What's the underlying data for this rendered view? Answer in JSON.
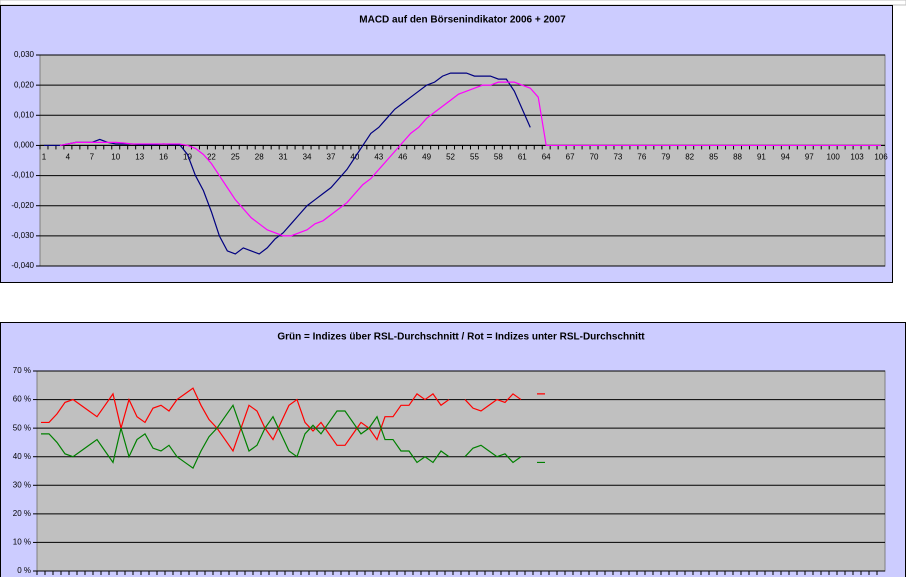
{
  "chart_data": [
    {
      "type": "line",
      "title": "MACD auf den Börsenindikator 2006 + 2007",
      "categories": [
        "1",
        null,
        null,
        "4",
        null,
        null,
        "7",
        null,
        null,
        "10",
        null,
        null,
        "13",
        null,
        null,
        "16",
        null,
        null,
        "19",
        null,
        null,
        "22",
        null,
        null,
        "25",
        null,
        null,
        "28",
        null,
        null,
        "31",
        null,
        null,
        "34",
        null,
        null,
        "37",
        null,
        null,
        "40",
        null,
        null,
        "43",
        null,
        null,
        "46",
        null,
        null,
        "49",
        null,
        null,
        "52",
        null,
        null,
        "55",
        null,
        null,
        "58",
        null,
        null,
        "61",
        null,
        null,
        "64",
        null,
        null,
        "67",
        null,
        null,
        "70",
        null,
        null,
        "73",
        null,
        null,
        "76",
        null,
        null,
        "79",
        null,
        null,
        "82",
        null,
        null,
        "85",
        null,
        null,
        "88",
        null,
        null,
        "91",
        null,
        null,
        "94",
        null,
        null,
        "97",
        null,
        null,
        "100",
        null,
        null,
        "103",
        null,
        null,
        "106"
      ],
      "series": [
        {
          "color": "#000080",
          "values": [
            0,
            0,
            0,
            0.0005,
            0.001,
            0.001,
            0.001,
            0.002,
            0.001,
            0.0005,
            0.0005,
            0.0005,
            0.0003,
            0.0003,
            0.0003,
            0.0005,
            0.0003,
            0.0003,
            -0.003,
            -0.01,
            -0.015,
            -0.022,
            -0.03,
            -0.035,
            -0.036,
            -0.034,
            -0.035,
            -0.036,
            -0.034,
            -0.031,
            -0.029,
            -0.026,
            -0.023,
            -0.02,
            -0.018,
            -0.016,
            -0.014,
            -0.011,
            -0.008,
            -0.004,
            0,
            0.004,
            0.006,
            0.009,
            0.012,
            0.014,
            0.016,
            0.018,
            0.02,
            0.021,
            0.023,
            0.024,
            0.024,
            0.024,
            0.023,
            0.023,
            0.023,
            0.022,
            0.022,
            0.018,
            0.012,
            0.006,
            null,
            null,
            null,
            null,
            null,
            null,
            null,
            null,
            null,
            null,
            null,
            null,
            null,
            null,
            null,
            null,
            null,
            null,
            null,
            null,
            null,
            null,
            null,
            null,
            null,
            null,
            null,
            null,
            null,
            null,
            null,
            null,
            null,
            null,
            null,
            null,
            null,
            null,
            null,
            null,
            null,
            null,
            null,
            null
          ]
        },
        {
          "color": "#ff00ff",
          "values": [
            null,
            null,
            0,
            0.0005,
            0.001,
            0.001,
            0.001,
            0.001,
            0.001,
            0.001,
            0.0008,
            0.0005,
            0.0005,
            0.0005,
            0.0005,
            0.0005,
            0.0005,
            0.0005,
            0,
            -0.001,
            -0.003,
            -0.006,
            -0.01,
            -0.014,
            -0.018,
            -0.021,
            -0.024,
            -0.026,
            -0.028,
            -0.029,
            -0.03,
            -0.03,
            -0.029,
            -0.028,
            -0.026,
            -0.025,
            -0.023,
            -0.021,
            -0.019,
            -0.016,
            -0.013,
            -0.011,
            -0.008,
            -0.005,
            -0.002,
            0.001,
            0.004,
            0.006,
            0.009,
            0.011,
            0.013,
            0.015,
            0.017,
            0.018,
            0.019,
            0.02,
            0.02,
            0.021,
            0.021,
            0.021,
            0.02,
            0.019,
            0.016,
            0,
            0,
            0,
            0,
            0,
            0,
            0,
            0,
            0,
            0,
            0,
            0,
            0,
            0,
            0,
            0,
            0,
            0,
            0,
            0,
            0,
            0,
            0,
            0,
            0,
            0,
            0,
            0,
            0,
            0,
            0,
            0,
            0,
            0,
            0,
            0,
            0,
            0,
            0,
            0,
            0,
            0,
            0
          ]
        }
      ],
      "ylim": [
        -0.04,
        0.03
      ],
      "yticks": [
        {
          "value": -0.04,
          "label": "-0,040"
        },
        {
          "value": -0.03,
          "label": "-0,030"
        },
        {
          "value": -0.02,
          "label": "-0,020"
        },
        {
          "value": -0.01,
          "label": "-0,010"
        },
        {
          "value": 0,
          "label": "0,000"
        },
        {
          "value": 0.01,
          "label": "0,010"
        },
        {
          "value": 0.02,
          "label": "0,020"
        },
        {
          "value": 0.03,
          "label": "0,030"
        }
      ],
      "negative_tick_color": "#ff0000",
      "grid": true
    },
    {
      "type": "line",
      "title": "Grün = Indizes über RSL-Durchschnitt / Rot = Indizes unter RSL-Durchschnitt",
      "categories": [
        null,
        null,
        null,
        null,
        null,
        null,
        null,
        null,
        null,
        null,
        null,
        null,
        null,
        null,
        null,
        null,
        null,
        null,
        null,
        null,
        null,
        null,
        null,
        null,
        null,
        null,
        null,
        null,
        null,
        null,
        null,
        null,
        null,
        null,
        null,
        null,
        null,
        null,
        null,
        null,
        null,
        null,
        null,
        null,
        null,
        null,
        null,
        null,
        null,
        null,
        null,
        null,
        null,
        null,
        null,
        null,
        null,
        null,
        null,
        null,
        null,
        null,
        null,
        null,
        null,
        null,
        null,
        null,
        null,
        null,
        null,
        null,
        null,
        null,
        null,
        null,
        null,
        null,
        null,
        null,
        null,
        null,
        null,
        null,
        null,
        null,
        null,
        null,
        null,
        null,
        null,
        null,
        null,
        null,
        null,
        null,
        null,
        null,
        null,
        null,
        null,
        null,
        null,
        null,
        null,
        null
      ],
      "series": [
        {
          "color": "#ff0000",
          "values": [
            52,
            52,
            55,
            59,
            60,
            58,
            56,
            54,
            58,
            62,
            50,
            60,
            54,
            52,
            57,
            58,
            56,
            60,
            62,
            64,
            58,
            53,
            50,
            46,
            42,
            50,
            58,
            56,
            50,
            46,
            52,
            58,
            60,
            52,
            49,
            52,
            48,
            44,
            44,
            48,
            52,
            50,
            46,
            54,
            54,
            58,
            58,
            62,
            60,
            62,
            58,
            60,
            null,
            60,
            57,
            56,
            58,
            60,
            59,
            62,
            60,
            null,
            62,
            62,
            null,
            null,
            null,
            null,
            null,
            null,
            null,
            null,
            null,
            null,
            null,
            null,
            null,
            null,
            null,
            null,
            null,
            null,
            null,
            null,
            null,
            null,
            null,
            null,
            null,
            null,
            null,
            null,
            null,
            null,
            null,
            null,
            null,
            null,
            null,
            null,
            null,
            null,
            null,
            null,
            null,
            null
          ]
        },
        {
          "color": "#008000",
          "values": [
            48,
            48,
            45,
            41,
            40,
            42,
            44,
            46,
            42,
            38,
            50,
            40,
            46,
            48,
            43,
            42,
            44,
            40,
            38,
            36,
            42,
            47,
            50,
            54,
            58,
            50,
            42,
            44,
            50,
            54,
            48,
            42,
            40,
            48,
            51,
            48,
            52,
            56,
            56,
            52,
            48,
            50,
            54,
            46,
            46,
            42,
            42,
            38,
            40,
            38,
            42,
            40,
            null,
            40,
            43,
            44,
            42,
            40,
            41,
            38,
            40,
            null,
            38,
            38,
            null,
            null,
            null,
            null,
            null,
            null,
            null,
            null,
            null,
            null,
            null,
            null,
            null,
            null,
            null,
            null,
            null,
            null,
            null,
            null,
            null,
            null,
            null,
            null,
            null,
            null,
            null,
            null,
            null,
            null,
            null,
            null,
            null,
            null,
            null,
            null,
            null,
            null,
            null,
            null,
            null,
            null
          ]
        }
      ],
      "ylim": [
        0,
        70
      ],
      "yticks": [
        {
          "value": 0,
          "label": "0 %"
        },
        {
          "value": 10,
          "label": "10 %"
        },
        {
          "value": 20,
          "label": "20 %"
        },
        {
          "value": 30,
          "label": "30 %"
        },
        {
          "value": 40,
          "label": "40 %"
        },
        {
          "value": 50,
          "label": "50 %"
        },
        {
          "value": 60,
          "label": "60 %"
        },
        {
          "value": 70,
          "label": "70 %"
        }
      ],
      "grid": true
    }
  ]
}
